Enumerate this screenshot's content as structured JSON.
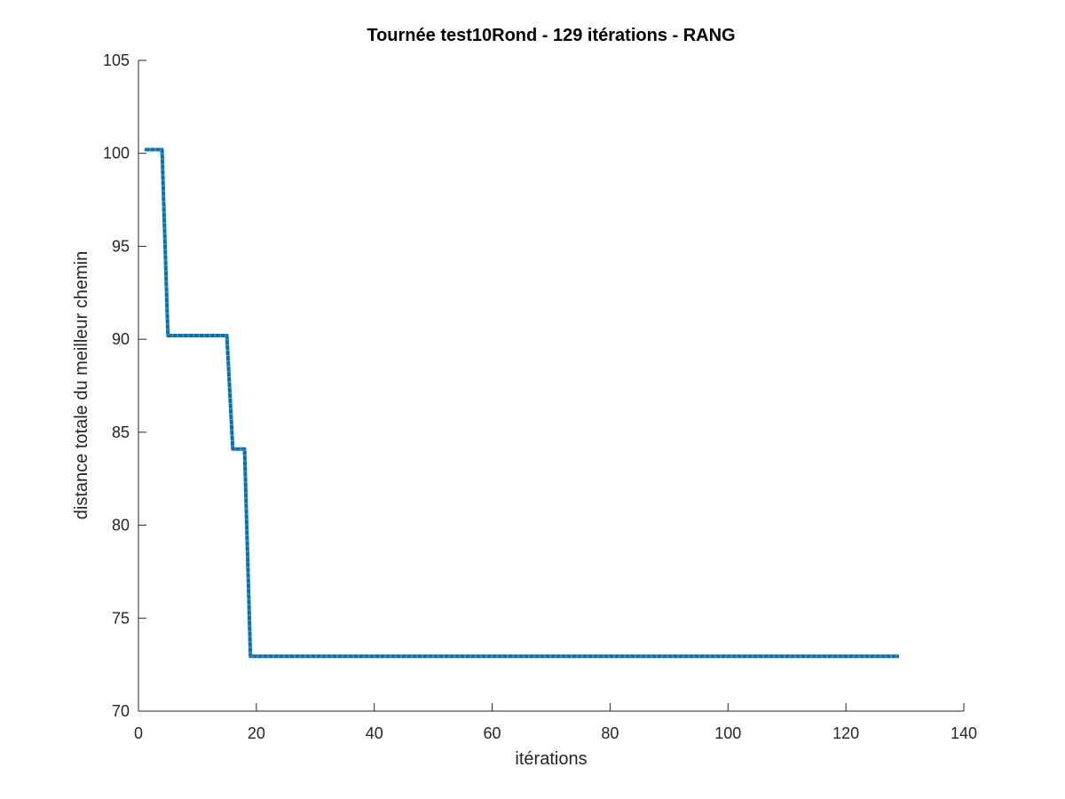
{
  "chart_data": {
    "type": "line",
    "title": "Tournée test10Rond - 129 itérations - RANG",
    "xlabel": "itérations",
    "ylabel": "distance totale du meilleur chemin",
    "xlim": [
      0,
      140
    ],
    "ylim": [
      70,
      105
    ],
    "xticks": [
      0,
      20,
      40,
      60,
      80,
      100,
      120,
      140
    ],
    "yticks": [
      70,
      75,
      80,
      85,
      90,
      95,
      100,
      105
    ],
    "xtick_labels": [
      "0",
      "20",
      "40",
      "60",
      "80",
      "100",
      "120",
      "140"
    ],
    "ytick_labels": [
      "70",
      "75",
      "80",
      "85",
      "90",
      "95",
      "100",
      "105"
    ],
    "grid": false,
    "legend": "none",
    "series": [
      {
        "color": "#0072bd",
        "style": "dotted-dense",
        "x": [
          1,
          2,
          3,
          4,
          5,
          6,
          15,
          16,
          17,
          18,
          19,
          20,
          129
        ],
        "y": [
          100.2,
          100.2,
          100.2,
          100.2,
          90.2,
          90.2,
          90.2,
          84.1,
          84.1,
          84.1,
          72.95,
          72.95,
          72.95
        ]
      }
    ]
  }
}
